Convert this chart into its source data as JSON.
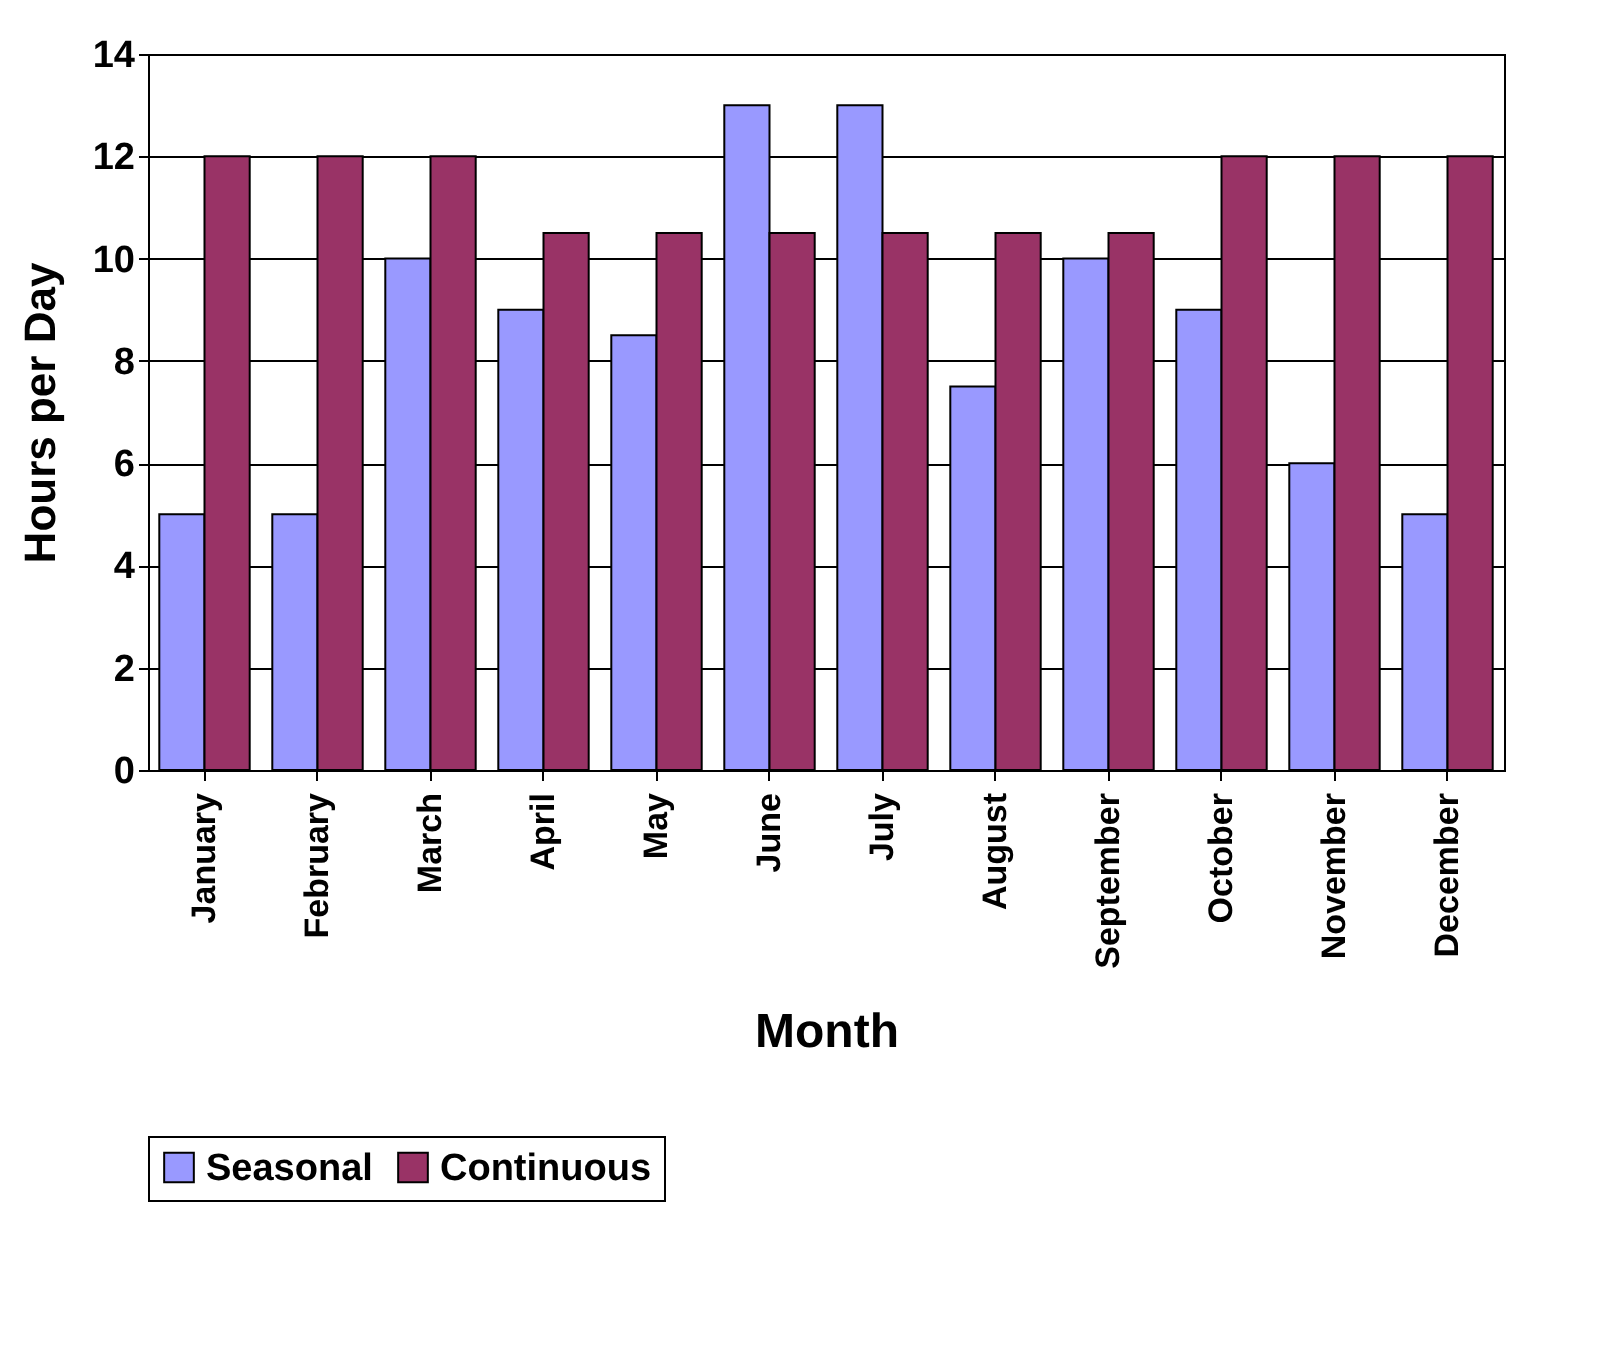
{
  "chart_data": {
    "type": "bar",
    "xlabel": "Month",
    "ylabel": "Hours per Day",
    "categories": [
      "January",
      "February",
      "March",
      "April",
      "May",
      "June",
      "July",
      "August",
      "September",
      "October",
      "November",
      "December"
    ],
    "series": [
      {
        "name": "Seasonal",
        "color": "#9999ff",
        "values": [
          5,
          5,
          10,
          9,
          8.5,
          13,
          13,
          7.5,
          10,
          9,
          6,
          5
        ]
      },
      {
        "name": "Continuous",
        "color": "#993366",
        "values": [
          12,
          12,
          12,
          10.5,
          10.5,
          10.5,
          10.5,
          10.5,
          10.5,
          12,
          12,
          12
        ]
      }
    ],
    "ylim": [
      0,
      14
    ],
    "yticks": [
      0,
      2,
      4,
      6,
      8,
      10,
      12,
      14
    ],
    "grid": "y",
    "legend": "bottom"
  }
}
